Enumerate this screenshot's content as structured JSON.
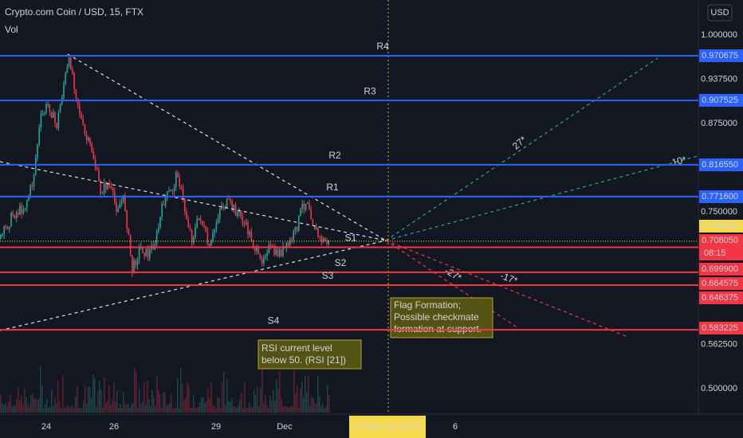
{
  "header": {
    "symbol": "Crypto.com Coin / USD, 15, FTX",
    "indicator": "Vol",
    "currency": "USD"
  },
  "price_axis": {
    "ylim": [
      0.47,
      1.05
    ],
    "yticks": [
      {
        "value": 1.0,
        "label": "1.000000"
      },
      {
        "value": 0.9375,
        "label": "0.937500"
      },
      {
        "value": 0.875,
        "label": "0.875000"
      },
      {
        "value": 0.75,
        "label": "0.750000"
      },
      {
        "value": 0.5625,
        "label": "0.562500"
      },
      {
        "value": 0.5,
        "label": "0.500000"
      }
    ]
  },
  "time_axis": {
    "ticks": [
      "24",
      "26",
      "29",
      "Dec",
      "6"
    ],
    "crosshair": "03 Dec '21  23:00"
  },
  "levels": [
    {
      "name": "R4",
      "value": 0.970675,
      "label": "0.970675",
      "color": "#2962ff"
    },
    {
      "name": "R3",
      "value": 0.907525,
      "label": "0.907525",
      "color": "#2962ff"
    },
    {
      "name": "R2",
      "value": 0.81655,
      "label": "0.816550",
      "color": "#2962ff"
    },
    {
      "name": "R1",
      "value": 0.7716,
      "label": "0.771600",
      "color": "#2962ff"
    },
    {
      "name": "S1",
      "value": 0.6999,
      "label": "0.699900",
      "color": "#f23645"
    },
    {
      "name": "S2",
      "value": 0.664575,
      "label": "0.664575",
      "color": "#f23645"
    },
    {
      "name": "S3",
      "value": 0.646375,
      "label": "0.646375",
      "color": "#f23645"
    },
    {
      "name": "S4",
      "value": 0.583225,
      "label": "0.583225",
      "color": "#f23645"
    }
  ],
  "current_price": {
    "value": 0.70845,
    "label": "0.708450",
    "close": 0.70805,
    "close_label": "0.708050",
    "countdown": "08:15"
  },
  "annotations": [
    {
      "lines": [
        "Flag Formation;",
        "Possible checkmate",
        "formation at support."
      ]
    },
    {
      "lines": [
        "RSI current level",
        "below 50. (RSI [21])"
      ]
    }
  ],
  "angle_labels": [
    "27*",
    "10*",
    "-27*",
    "-17*"
  ]
}
